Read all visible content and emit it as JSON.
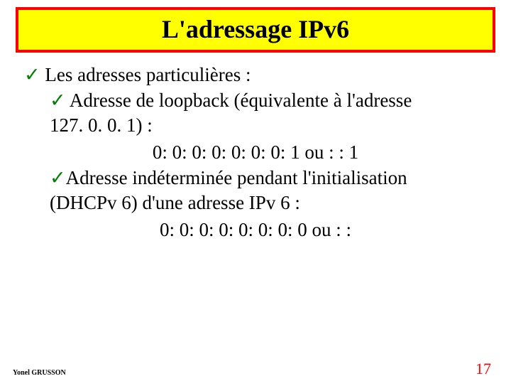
{
  "title": "L'adressage IPv6",
  "check_glyph": "✓",
  "bullet1": " Les adresses particulières :",
  "bullet2a": "  Adresse de loopback (équivalente à l'adresse",
  "bullet2b": "127. 0. 0. 1) :",
  "loopback_line": "0: 0: 0: 0: 0: 0: 0: 1   ou   : : 1",
  "bullet3a": "Adresse indéterminée pendant l'initialisation",
  "bullet3b": "(DHCPv 6) d'une adresse IPv 6 :",
  "unspec_line": "0: 0: 0: 0: 0: 0: 0: 0   ou   : :",
  "author": "Yonel GRUSSON",
  "page": "17",
  "colors": {
    "title_bg": "#ffff00",
    "title_border": "#ff0000",
    "check": "#008000",
    "page_number": "#ff0000",
    "text": "#000000",
    "background": "#ffffff"
  }
}
